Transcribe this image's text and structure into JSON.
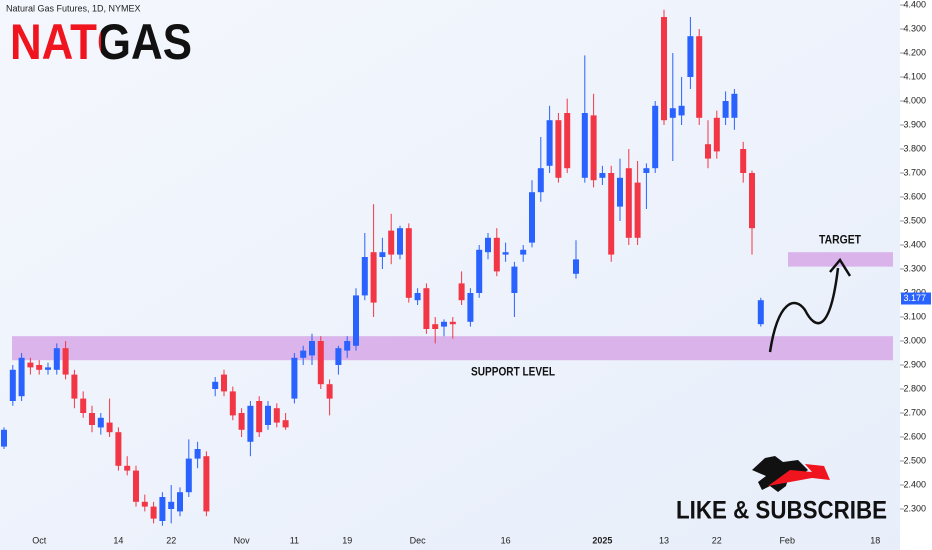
{
  "chart_data": {
    "type": "candlestick",
    "title": "NATGAS",
    "subtitle": "Natural Gas Futures, 1D, NYMEX",
    "categories": [
      null,
      null,
      null,
      null,
      "Oct",
      null,
      null,
      null,
      null,
      null,
      null,
      null,
      null,
      "14",
      null,
      null,
      null,
      null,
      null,
      "22",
      null,
      null,
      null,
      null,
      null,
      null,
      null,
      "Nov",
      null,
      null,
      null,
      null,
      null,
      "11",
      null,
      null,
      null,
      null,
      null,
      "19",
      null,
      null,
      null,
      null,
      null,
      null,
      null,
      "Dec",
      null,
      null,
      null,
      null,
      null,
      null,
      null,
      null,
      null,
      "16",
      null,
      null,
      null,
      null,
      null,
      null,
      null,
      null,
      null,
      null,
      "2025",
      null,
      null,
      null,
      null,
      null,
      null,
      "13",
      null,
      null,
      null,
      null,
      null,
      "22",
      null,
      null,
      null,
      null,
      null,
      null,
      null,
      "Feb",
      null,
      null,
      null,
      null,
      null,
      null,
      null,
      null,
      null,
      "18"
    ],
    "open": [
      2.56,
      2.75,
      2.77,
      2.91,
      2.9,
      2.88,
      2.88,
      2.97,
      2.86,
      2.76,
      2.7,
      2.64,
      2.66,
      2.62,
      2.48,
      2.46,
      2.33,
      2.31,
      2.25,
      2.3,
      2.29,
      2.37,
      2.51,
      2.52,
      2.8,
      2.86,
      2.79,
      2.7,
      2.58,
      2.75,
      2.65,
      2.72,
      2.67,
      2.76,
      2.93,
      2.94,
      3.0,
      2.82,
      2.9,
      2.96,
      2.98,
      3.19,
      3.37,
      3.35,
      3.46,
      3.36,
      3.47,
      3.17,
      3.22,
      3.07,
      3.06,
      3.08,
      3.24,
      3.08,
      3.2,
      3.37,
      3.43,
      3.36,
      3.2,
      3.36,
      3.41,
      3.62,
      3.73,
      3.92,
      3.95,
      3.28,
      3.68,
      3.94,
      3.68,
      3.7,
      3.56,
      3.72,
      3.66,
      3.7,
      3.72,
      4.35,
      3.93,
      3.94,
      4.1,
      4.27,
      3.82,
      3.93,
      3.93,
      3.93,
      3.8,
      3.7,
      3.07,
      null,
      null,
      null,
      null,
      null,
      null,
      null,
      null,
      null,
      null,
      null,
      null,
      null
    ],
    "high": [
      2.64,
      2.9,
      2.95,
      2.93,
      2.92,
      2.91,
      2.99,
      3.0,
      2.88,
      2.79,
      2.73,
      2.7,
      2.76,
      2.64,
      2.52,
      2.48,
      2.36,
      2.33,
      2.37,
      2.4,
      2.39,
      2.59,
      2.58,
      2.54,
      2.85,
      2.88,
      2.81,
      2.72,
      2.75,
      2.77,
      2.75,
      2.74,
      2.7,
      2.95,
      2.98,
      3.03,
      3.02,
      2.84,
      2.98,
      3.02,
      3.22,
      3.45,
      3.57,
      3.43,
      3.53,
      3.48,
      3.49,
      3.22,
      3.24,
      3.1,
      3.09,
      3.1,
      3.29,
      3.22,
      3.4,
      3.45,
      3.47,
      3.41,
      3.33,
      3.4,
      3.67,
      3.85,
      3.98,
      3.95,
      4.01,
      3.42,
      4.19,
      4.03,
      3.73,
      3.73,
      3.76,
      3.8,
      3.75,
      3.74,
      4.0,
      4.38,
      4.2,
      4.1,
      4.35,
      4.3,
      3.92,
      3.96,
      4.04,
      4.05,
      3.83,
      3.71,
      3.18,
      null,
      null,
      null,
      null,
      null,
      null,
      null,
      null,
      null,
      null,
      null,
      null,
      null
    ],
    "low": [
      2.55,
      2.73,
      2.75,
      2.86,
      2.86,
      2.86,
      2.86,
      2.84,
      2.72,
      2.68,
      2.62,
      2.61,
      2.6,
      2.46,
      2.44,
      2.31,
      2.29,
      2.24,
      2.23,
      2.24,
      2.27,
      2.35,
      2.47,
      2.27,
      2.77,
      2.77,
      2.67,
      2.6,
      2.52,
      2.6,
      2.63,
      2.64,
      2.63,
      2.74,
      2.9,
      2.9,
      2.8,
      2.69,
      2.86,
      2.93,
      2.96,
      3.17,
      3.1,
      3.3,
      3.32,
      3.34,
      3.16,
      3.15,
      3.03,
      2.99,
      3.02,
      3.01,
      3.15,
      3.06,
      3.18,
      3.34,
      3.27,
      3.33,
      3.1,
      3.33,
      3.39,
      3.58,
      3.7,
      3.66,
      3.7,
      3.26,
      3.66,
      3.64,
      3.65,
      3.33,
      3.5,
      3.4,
      3.4,
      3.55,
      3.7,
      3.9,
      3.75,
      3.9,
      4.05,
      3.9,
      3.72,
      3.76,
      3.9,
      3.88,
      3.66,
      3.36,
      3.06,
      null,
      null,
      null,
      null,
      null,
      null,
      null,
      null,
      null,
      null,
      null,
      null,
      null
    ],
    "close": [
      2.63,
      2.88,
      2.93,
      2.89,
      2.88,
      2.89,
      2.97,
      2.86,
      2.76,
      2.7,
      2.65,
      2.68,
      2.62,
      2.48,
      2.46,
      2.33,
      2.31,
      2.26,
      2.35,
      2.33,
      2.37,
      2.51,
      2.55,
      2.29,
      2.83,
      2.79,
      2.69,
      2.63,
      2.73,
      2.62,
      2.73,
      2.66,
      2.64,
      2.93,
      2.96,
      3.0,
      2.82,
      2.76,
      2.97,
      3.0,
      3.19,
      3.35,
      3.16,
      3.37,
      3.36,
      3.47,
      3.18,
      3.2,
      3.05,
      3.05,
      3.08,
      3.07,
      3.17,
      3.2,
      3.38,
      3.43,
      3.29,
      3.37,
      3.31,
      3.38,
      3.62,
      3.72,
      3.92,
      3.68,
      3.72,
      3.34,
      3.95,
      3.67,
      3.7,
      3.36,
      3.68,
      3.43,
      3.43,
      3.72,
      3.98,
      3.92,
      3.97,
      3.98,
      4.27,
      3.93,
      3.76,
      3.79,
      4.0,
      4.03,
      3.7,
      3.47,
      3.17,
      null,
      null,
      null,
      null,
      null,
      null,
      null,
      null,
      null,
      null,
      null,
      null,
      null
    ],
    "up_color": "#2962ff",
    "down_color": "#f23645",
    "ylim": [
      2.3,
      4.4
    ],
    "yticks": [
      {
        "value": 2.3,
        "label": "2.300"
      },
      {
        "value": 2.4,
        "label": "2.400"
      },
      {
        "value": 2.5,
        "label": "2.500"
      },
      {
        "value": 2.6,
        "label": "2.600"
      },
      {
        "value": 2.7,
        "label": "2.700"
      },
      {
        "value": 2.8,
        "label": "2.800"
      },
      {
        "value": 2.9,
        "label": "2.900"
      },
      {
        "value": 3.0,
        "label": "3.000"
      },
      {
        "value": 3.1,
        "label": "3.100"
      },
      {
        "value": 3.2,
        "label": "3.200"
      },
      {
        "value": 3.3,
        "label": "3.300"
      },
      {
        "value": 3.4,
        "label": "3.400"
      },
      {
        "value": 3.5,
        "label": "3.500"
      },
      {
        "value": 3.6,
        "label": "3.600"
      },
      {
        "value": 3.7,
        "label": "3.700"
      },
      {
        "value": 3.8,
        "label": "3.800"
      },
      {
        "value": 3.9,
        "label": "3.900"
      },
      {
        "value": 4.0,
        "label": "4.000"
      },
      {
        "value": 4.1,
        "label": "4.100"
      },
      {
        "value": 4.2,
        "label": "4.200"
      },
      {
        "value": 4.3,
        "label": "4.300"
      },
      {
        "value": 4.4,
        "label": "4.400"
      }
    ],
    "last_price": {
      "value": 3.177,
      "label": "3.177"
    },
    "zones": [
      {
        "label": "SUPPORT LEVEL",
        "from": 2.92,
        "to": 3.02,
        "color": "#d6a8e6"
      },
      {
        "label": "TARGET",
        "from": 3.31,
        "to": 3.37,
        "color": "#d6a8e6"
      }
    ],
    "banner": "LIKE & SUBSCRIBE"
  }
}
